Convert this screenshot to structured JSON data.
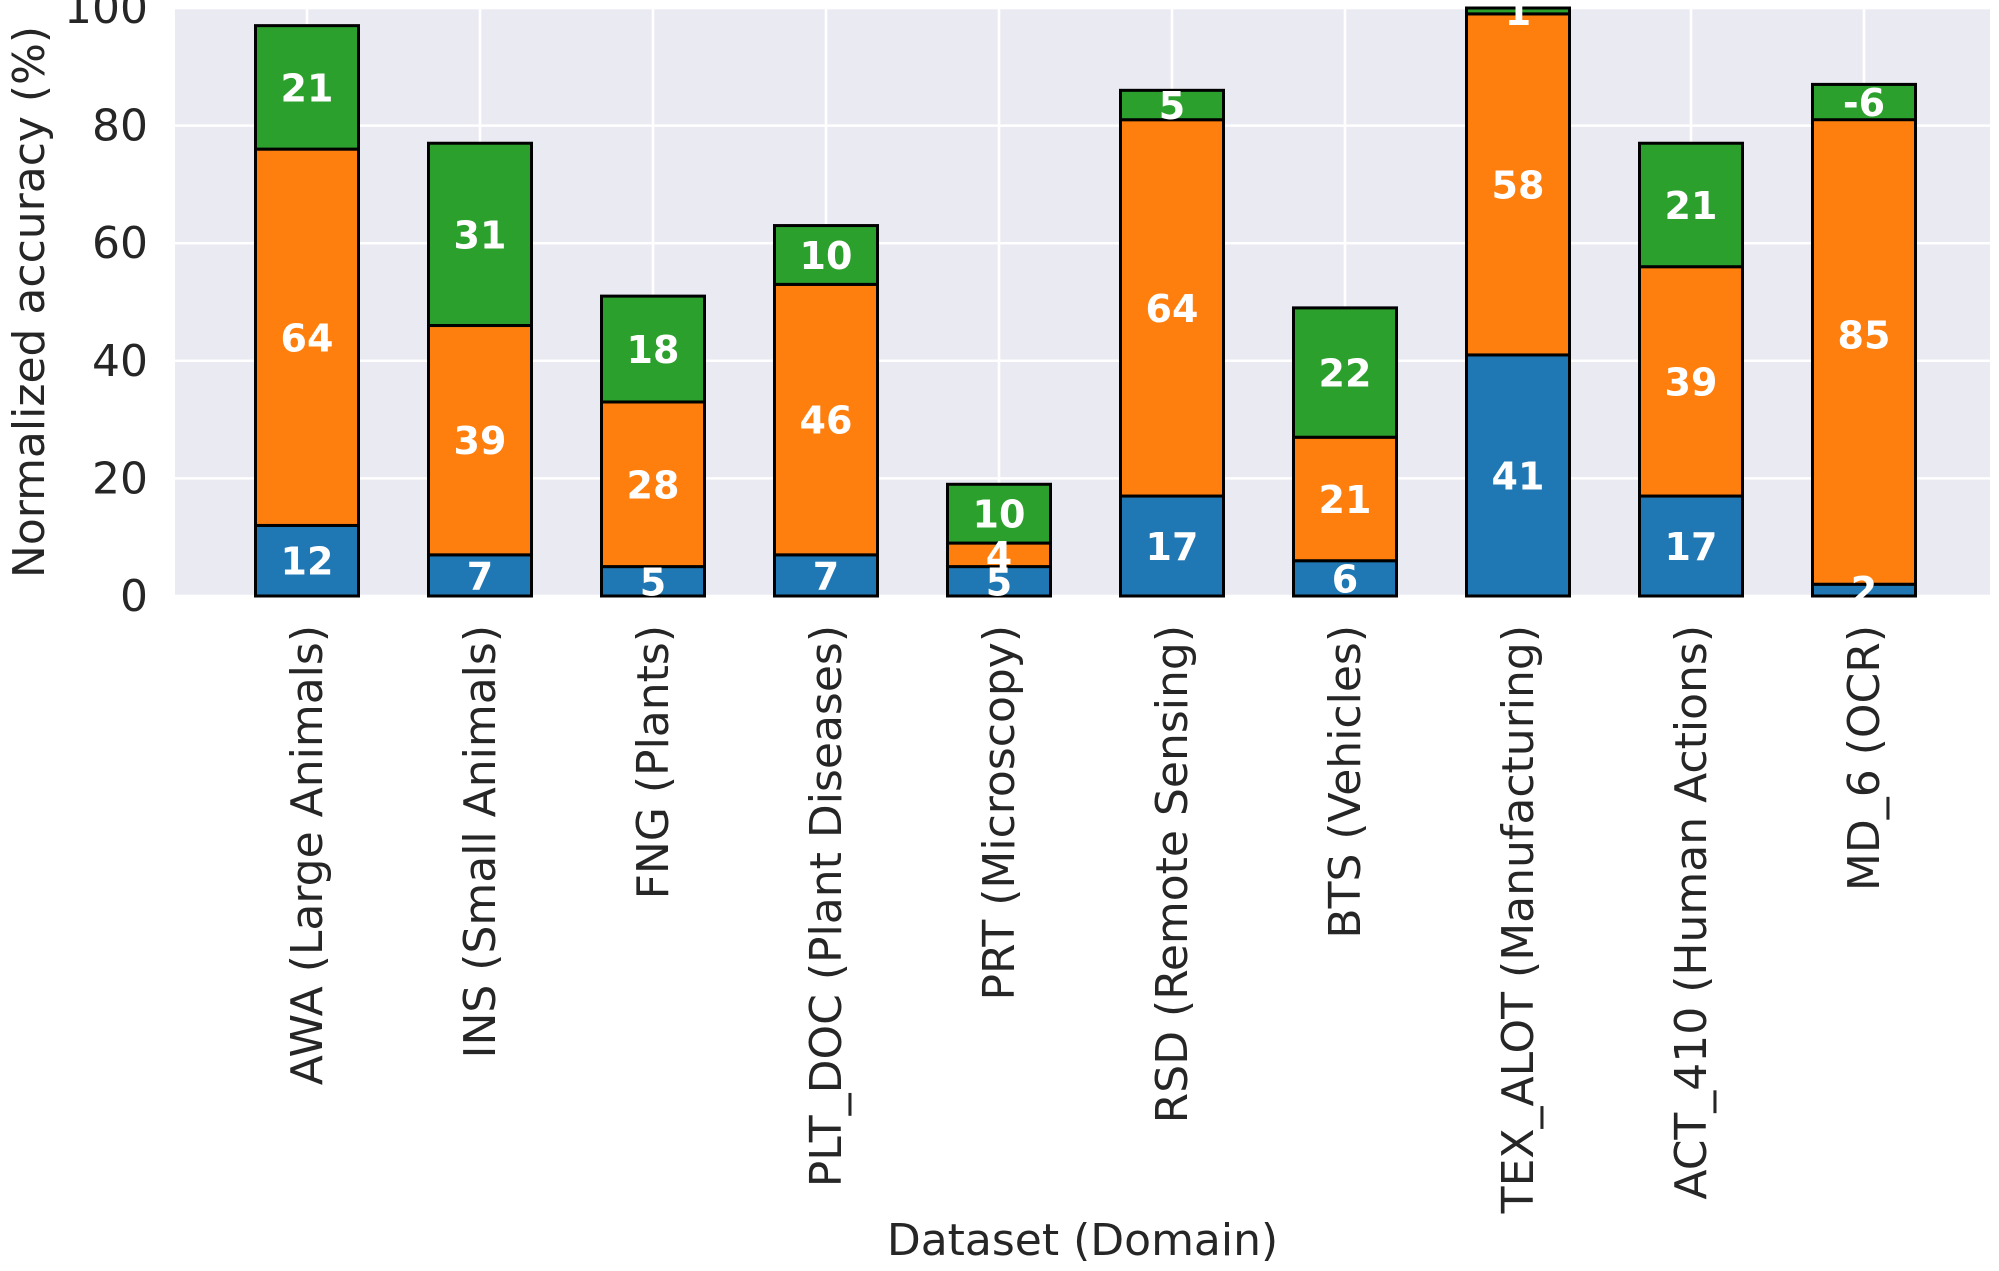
{
  "chart_data": {
    "type": "bar",
    "stacked": true,
    "categories": [
      "AWA (Large Animals)",
      "INS (Small Animals)",
      "FNG (Plants)",
      "PLT_DOC (Plant Diseases)",
      "PRT (Microscopy)",
      "RSD (Remote Sensing)",
      "BTS (Vehicles)",
      "TEX_ALOT (Manufacturing)",
      "ACT_410 (Human Actions)",
      "MD_6 (OCR)"
    ],
    "series": [
      {
        "color": "#1f77b4",
        "values": [
          12,
          7,
          5,
          7,
          5,
          17,
          6,
          41,
          17,
          2
        ]
      },
      {
        "color": "#ff7f0e",
        "values": [
          64,
          39,
          28,
          46,
          4,
          64,
          21,
          58,
          39,
          85
        ]
      },
      {
        "color": "#2ca02c",
        "values": [
          21,
          31,
          18,
          10,
          10,
          5,
          22,
          1,
          21,
          -6
        ]
      }
    ],
    "xlabel": "Dataset (Domain)",
    "ylabel": "Normalized accuracy (%)",
    "ylim": [
      0,
      100
    ],
    "yticks": [
      "0",
      "20",
      "40",
      "60",
      "80",
      "100"
    ],
    "grid": true,
    "background": "#eaeaf2"
  }
}
